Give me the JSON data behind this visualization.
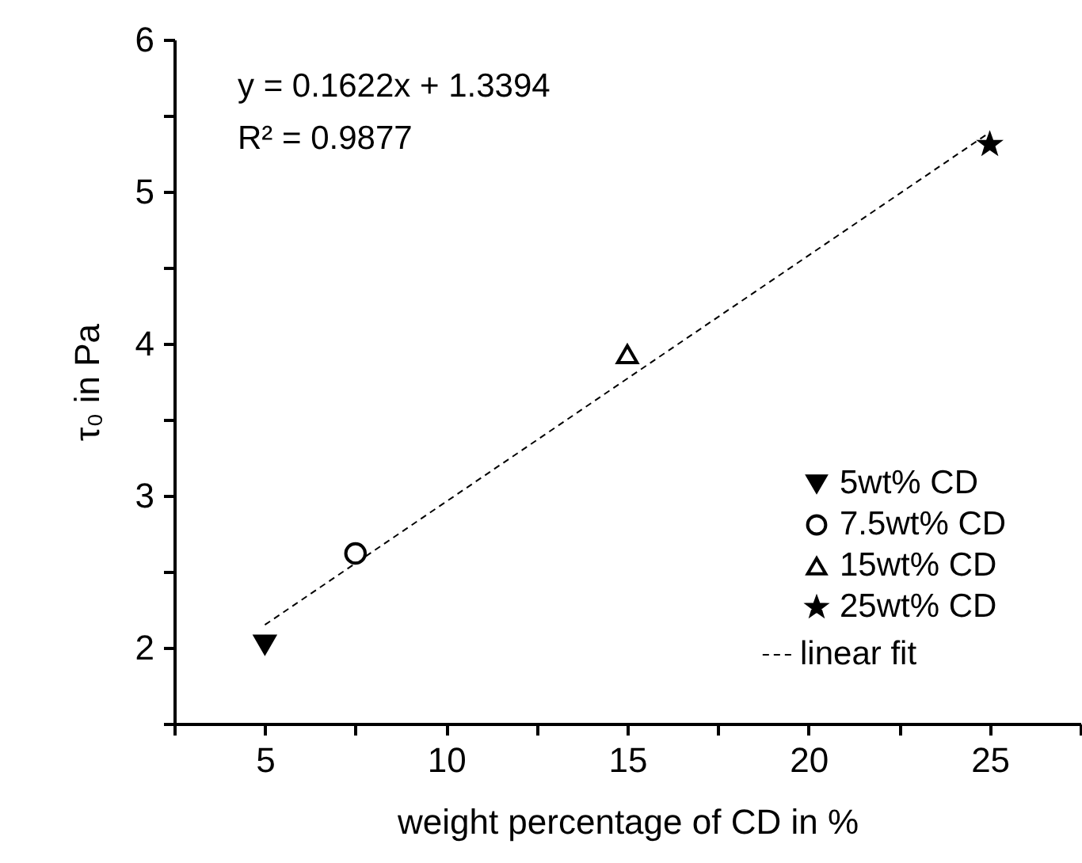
{
  "chart_data": {
    "type": "scatter",
    "xlabel": "weight percentage of CD in %",
    "ylabel": "τ₀ in Pa",
    "xlim": [
      2.5,
      27.5
    ],
    "xticks": [
      {
        "value": 2.5,
        "label": null
      },
      5,
      {
        "value": 7.5,
        "label": null
      },
      10,
      {
        "value": 12.5,
        "label": null
      },
      15,
      {
        "value": 17.5,
        "label": null
      },
      20,
      {
        "value": 22.5,
        "label": null
      },
      25,
      {
        "value": 27.5,
        "label": null
      }
    ],
    "ylim": [
      1.5,
      6
    ],
    "yticks": [
      {
        "value": 1.5,
        "label": null
      },
      2,
      {
        "value": 2.5,
        "label": null
      },
      3,
      {
        "value": 3.5,
        "label": null
      },
      4,
      {
        "value": 4.5,
        "label": null
      },
      5,
      {
        "value": 5.5,
        "label": null
      },
      6
    ],
    "grid": false,
    "legend": "bottom right",
    "annotations": [
      "y = 0.1622x + 1.3394",
      "R² = 0.9877"
    ],
    "series": [
      {
        "name": "5wt% CD",
        "type": "scatter",
        "marker": "triangle-down",
        "color": "#000000",
        "x": [
          5
        ],
        "values": [
          2.02
        ]
      },
      {
        "name": "7.5wt% CD",
        "type": "scatter",
        "marker": "circle",
        "color": "#000000",
        "x": [
          7.5
        ],
        "values": [
          2.62
        ]
      },
      {
        "name": "15wt% CD",
        "type": "scatter",
        "marker": "triangle",
        "color": "#000000",
        "x": [
          15
        ],
        "values": [
          3.93
        ]
      },
      {
        "name": "25wt% CD",
        "type": "scatter",
        "marker": "star",
        "color": "#000000",
        "x": [
          25
        ],
        "values": [
          5.31
        ]
      },
      {
        "name": "linear fit",
        "type": "line",
        "line_style": "dashed",
        "color": "#000000",
        "x": [
          5,
          25
        ],
        "values": [
          2.15,
          5.39
        ]
      }
    ]
  }
}
